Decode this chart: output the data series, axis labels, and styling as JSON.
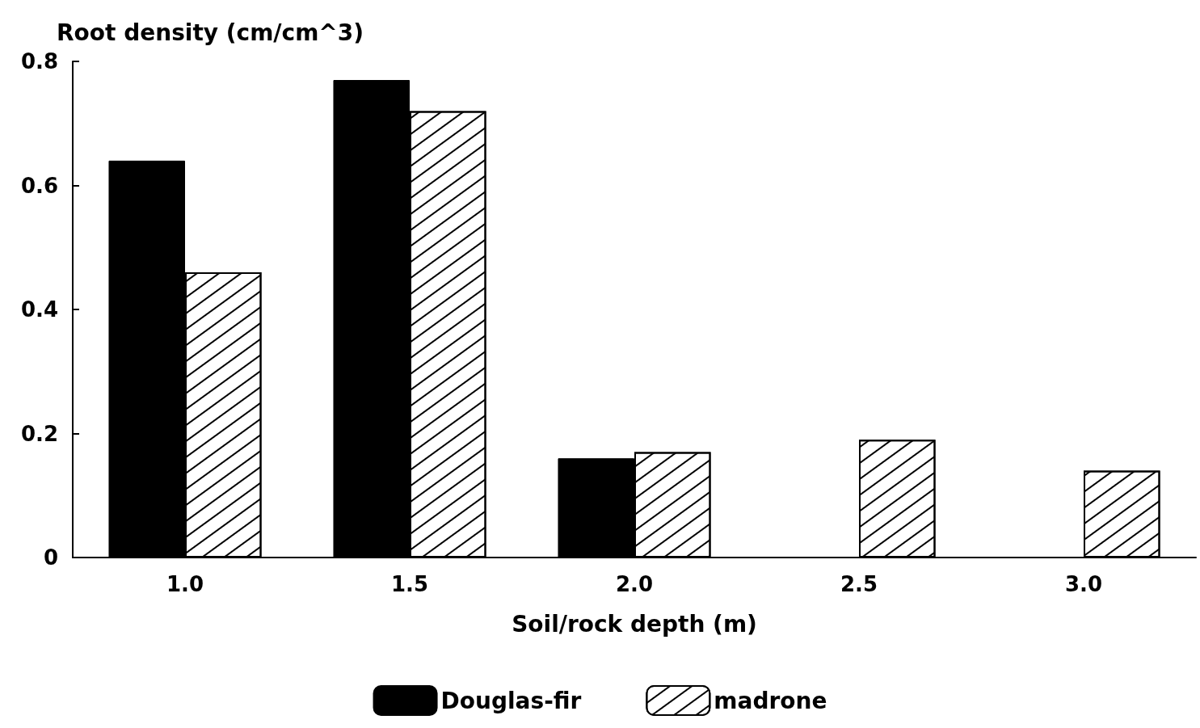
{
  "chart_data": {
    "type": "bar",
    "ylabel": "Root density (cm/cm^3)",
    "xlabel": "Soil/rock depth (m)",
    "categories": [
      "1.0",
      "1.5",
      "2.0",
      "2.5",
      "3.0"
    ],
    "series": [
      {
        "name": "Douglas-fir",
        "color": "#000000",
        "values": [
          0.64,
          0.77,
          0.16,
          null,
          null
        ]
      },
      {
        "name": "madrone",
        "color": "#ffffff",
        "values": [
          0.46,
          0.72,
          0.17,
          0.19,
          0.14
        ]
      }
    ],
    "ylim": [
      0,
      0.8
    ],
    "yticks": [
      0,
      0.2,
      0.4,
      0.6,
      0.8
    ],
    "grid": false,
    "legend": "bottom"
  }
}
